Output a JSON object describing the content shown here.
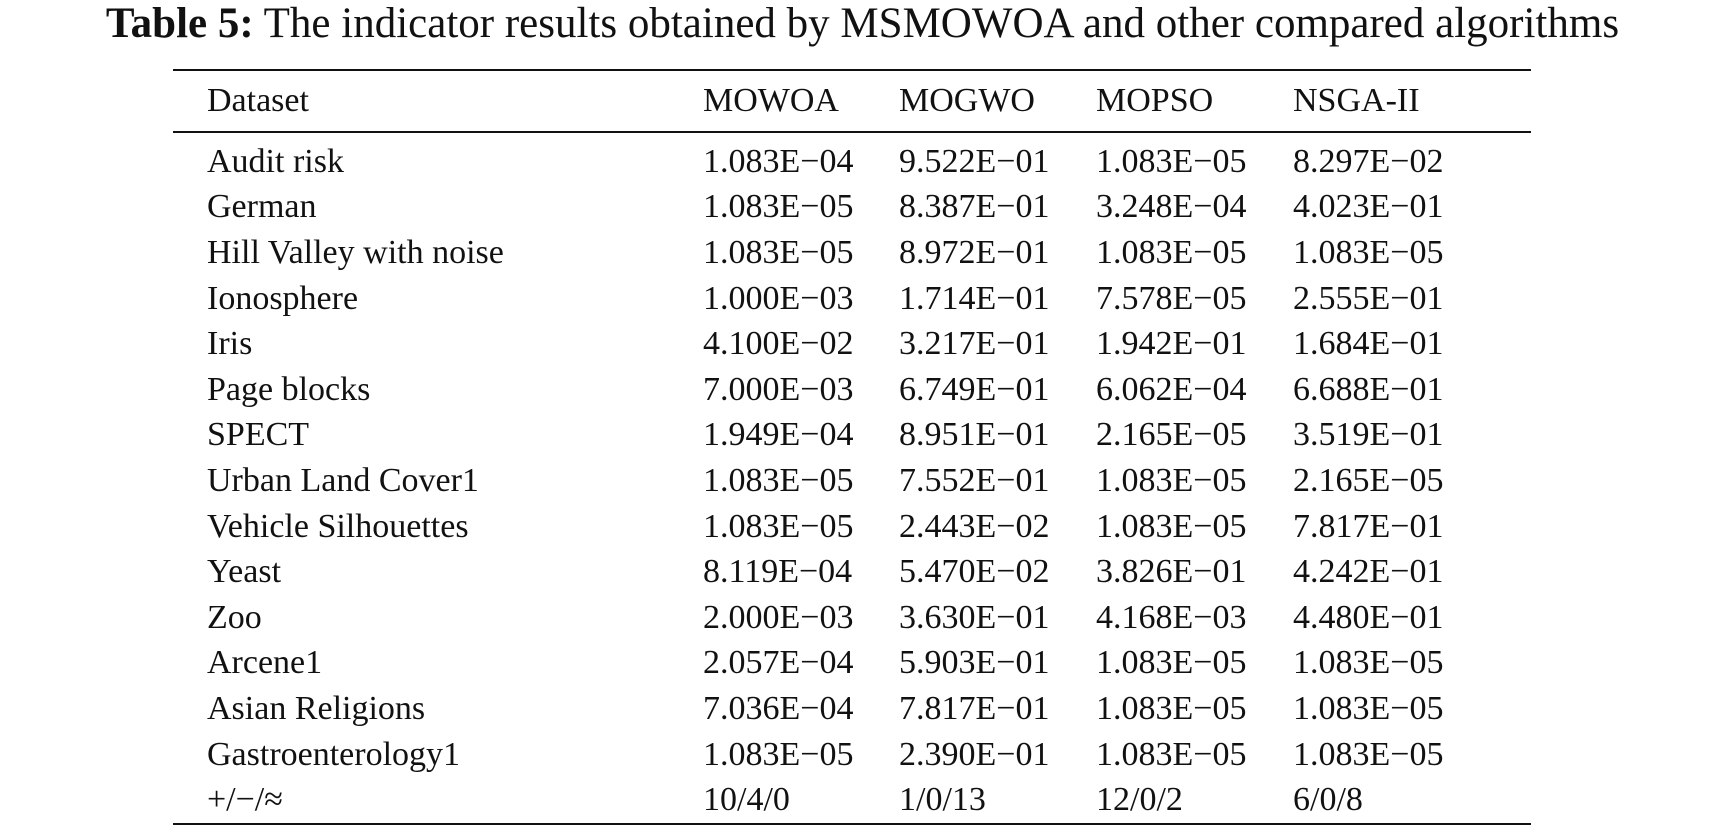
{
  "caption": {
    "label": "Table 5:",
    "text": "The indicator results obtained by MSMOWOA and other compared algorithms"
  },
  "table": {
    "headers": [
      "Dataset",
      "MOWOA",
      "MOGWO",
      "MOPSO",
      "NSGA-II"
    ],
    "rows": [
      [
        "Audit risk",
        "1.083E−04",
        "9.522E−01",
        "1.083E−05",
        "8.297E−02"
      ],
      [
        "German",
        "1.083E−05",
        "8.387E−01",
        "3.248E−04",
        "4.023E−01"
      ],
      [
        "Hill Valley with noise",
        "1.083E−05",
        "8.972E−01",
        "1.083E−05",
        "1.083E−05"
      ],
      [
        "Ionosphere",
        "1.000E−03",
        "1.714E−01",
        "7.578E−05",
        "2.555E−01"
      ],
      [
        "Iris",
        "4.100E−02",
        "3.217E−01",
        "1.942E−01",
        "1.684E−01"
      ],
      [
        "Page blocks",
        "7.000E−03",
        "6.749E−01",
        "6.062E−04",
        "6.688E−01"
      ],
      [
        "SPECT",
        "1.949E−04",
        "8.951E−01",
        "2.165E−05",
        "3.519E−01"
      ],
      [
        "Urban Land Cover1",
        "1.083E−05",
        "7.552E−01",
        "1.083E−05",
        "2.165E−05"
      ],
      [
        "Vehicle Silhouettes",
        "1.083E−05",
        "2.443E−02",
        "1.083E−05",
        "7.817E−01"
      ],
      [
        "Yeast",
        "8.119E−04",
        "5.470E−02",
        "3.826E−01",
        "4.242E−01"
      ],
      [
        "Zoo",
        "2.000E−03",
        "3.630E−01",
        "4.168E−03",
        "4.480E−01"
      ],
      [
        "Arcene1",
        "2.057E−04",
        "5.903E−01",
        "1.083E−05",
        "1.083E−05"
      ],
      [
        "Asian Religions",
        "7.036E−04",
        "7.817E−01",
        "1.083E−05",
        "1.083E−05"
      ],
      [
        "Gastroenterology1",
        "1.083E−05",
        "2.390E−01",
        "1.083E−05",
        "1.083E−05"
      ],
      [
        "+/−/≈",
        "10/4/0",
        "1/0/13",
        "12/0/2",
        "6/0/8"
      ]
    ]
  }
}
